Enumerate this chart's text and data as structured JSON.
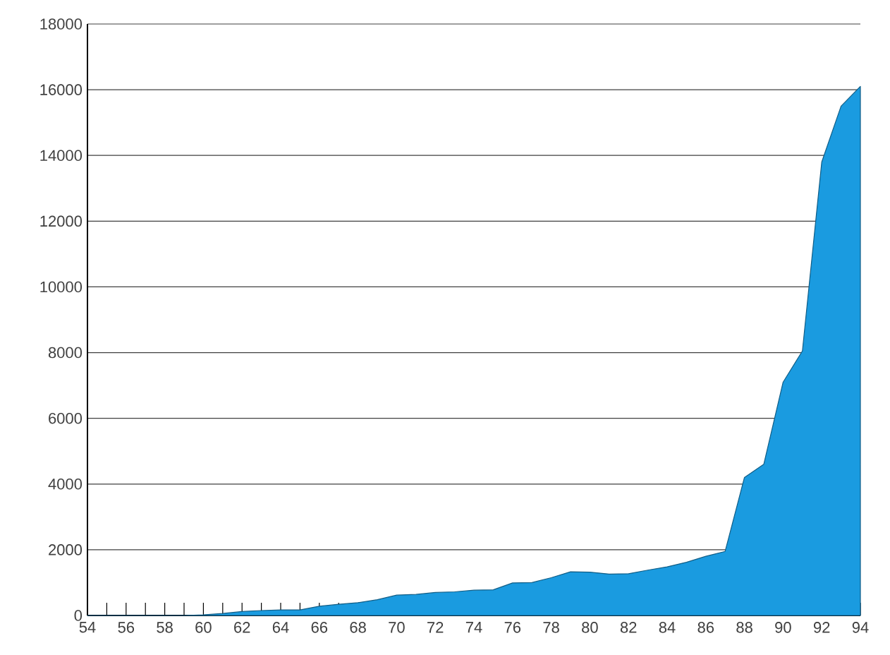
{
  "chart_data": {
    "type": "area",
    "color": "#1a9be0",
    "x": [
      54,
      55,
      56,
      57,
      58,
      59,
      60,
      61,
      62,
      63,
      64,
      65,
      66,
      67,
      68,
      69,
      70,
      71,
      72,
      73,
      74,
      75,
      76,
      77,
      78,
      79,
      80,
      81,
      82,
      83,
      84,
      85,
      86,
      87,
      88,
      89,
      90,
      91,
      92,
      93,
      94
    ],
    "values": [
      0,
      0,
      0,
      0,
      0,
      0,
      20,
      60,
      120,
      150,
      170,
      170,
      280,
      340,
      390,
      480,
      620,
      640,
      700,
      720,
      770,
      780,
      990,
      1000,
      1150,
      1330,
      1320,
      1260,
      1270,
      1380,
      1480,
      1620,
      1800,
      1950,
      4200,
      4600,
      7100,
      8050,
      13800,
      15500,
      16100
    ],
    "xlim": [
      54,
      94
    ],
    "xticks": [
      54,
      {
        "value": 55,
        "label": null
      },
      56,
      {
        "value": 57,
        "label": null
      },
      58,
      {
        "value": 59,
        "label": null
      },
      60,
      {
        "value": 61,
        "label": null
      },
      62,
      {
        "value": 63,
        "label": null
      },
      64,
      {
        "value": 65,
        "label": null
      },
      66,
      {
        "value": 67,
        "label": null
      },
      68,
      {
        "value": 69,
        "label": null
      },
      70,
      {
        "value": 71,
        "label": null
      },
      72,
      {
        "value": 73,
        "label": null
      },
      74,
      {
        "value": 75,
        "label": null
      },
      76,
      {
        "value": 77,
        "label": null
      },
      78,
      {
        "value": 79,
        "label": null
      },
      80,
      {
        "value": 81,
        "label": null
      },
      82,
      {
        "value": 83,
        "label": null
      },
      84,
      {
        "value": 85,
        "label": null
      },
      86,
      {
        "value": 87,
        "label": null
      },
      88,
      {
        "value": 89,
        "label": null
      },
      90,
      {
        "value": 91,
        "label": null
      },
      92,
      {
        "value": 93,
        "label": null
      },
      94
    ],
    "ylim": [
      0,
      18000
    ],
    "yticks": [
      0,
      2000,
      4000,
      6000,
      8000,
      10000,
      12000,
      14000,
      16000,
      18000
    ],
    "grid": "y"
  }
}
